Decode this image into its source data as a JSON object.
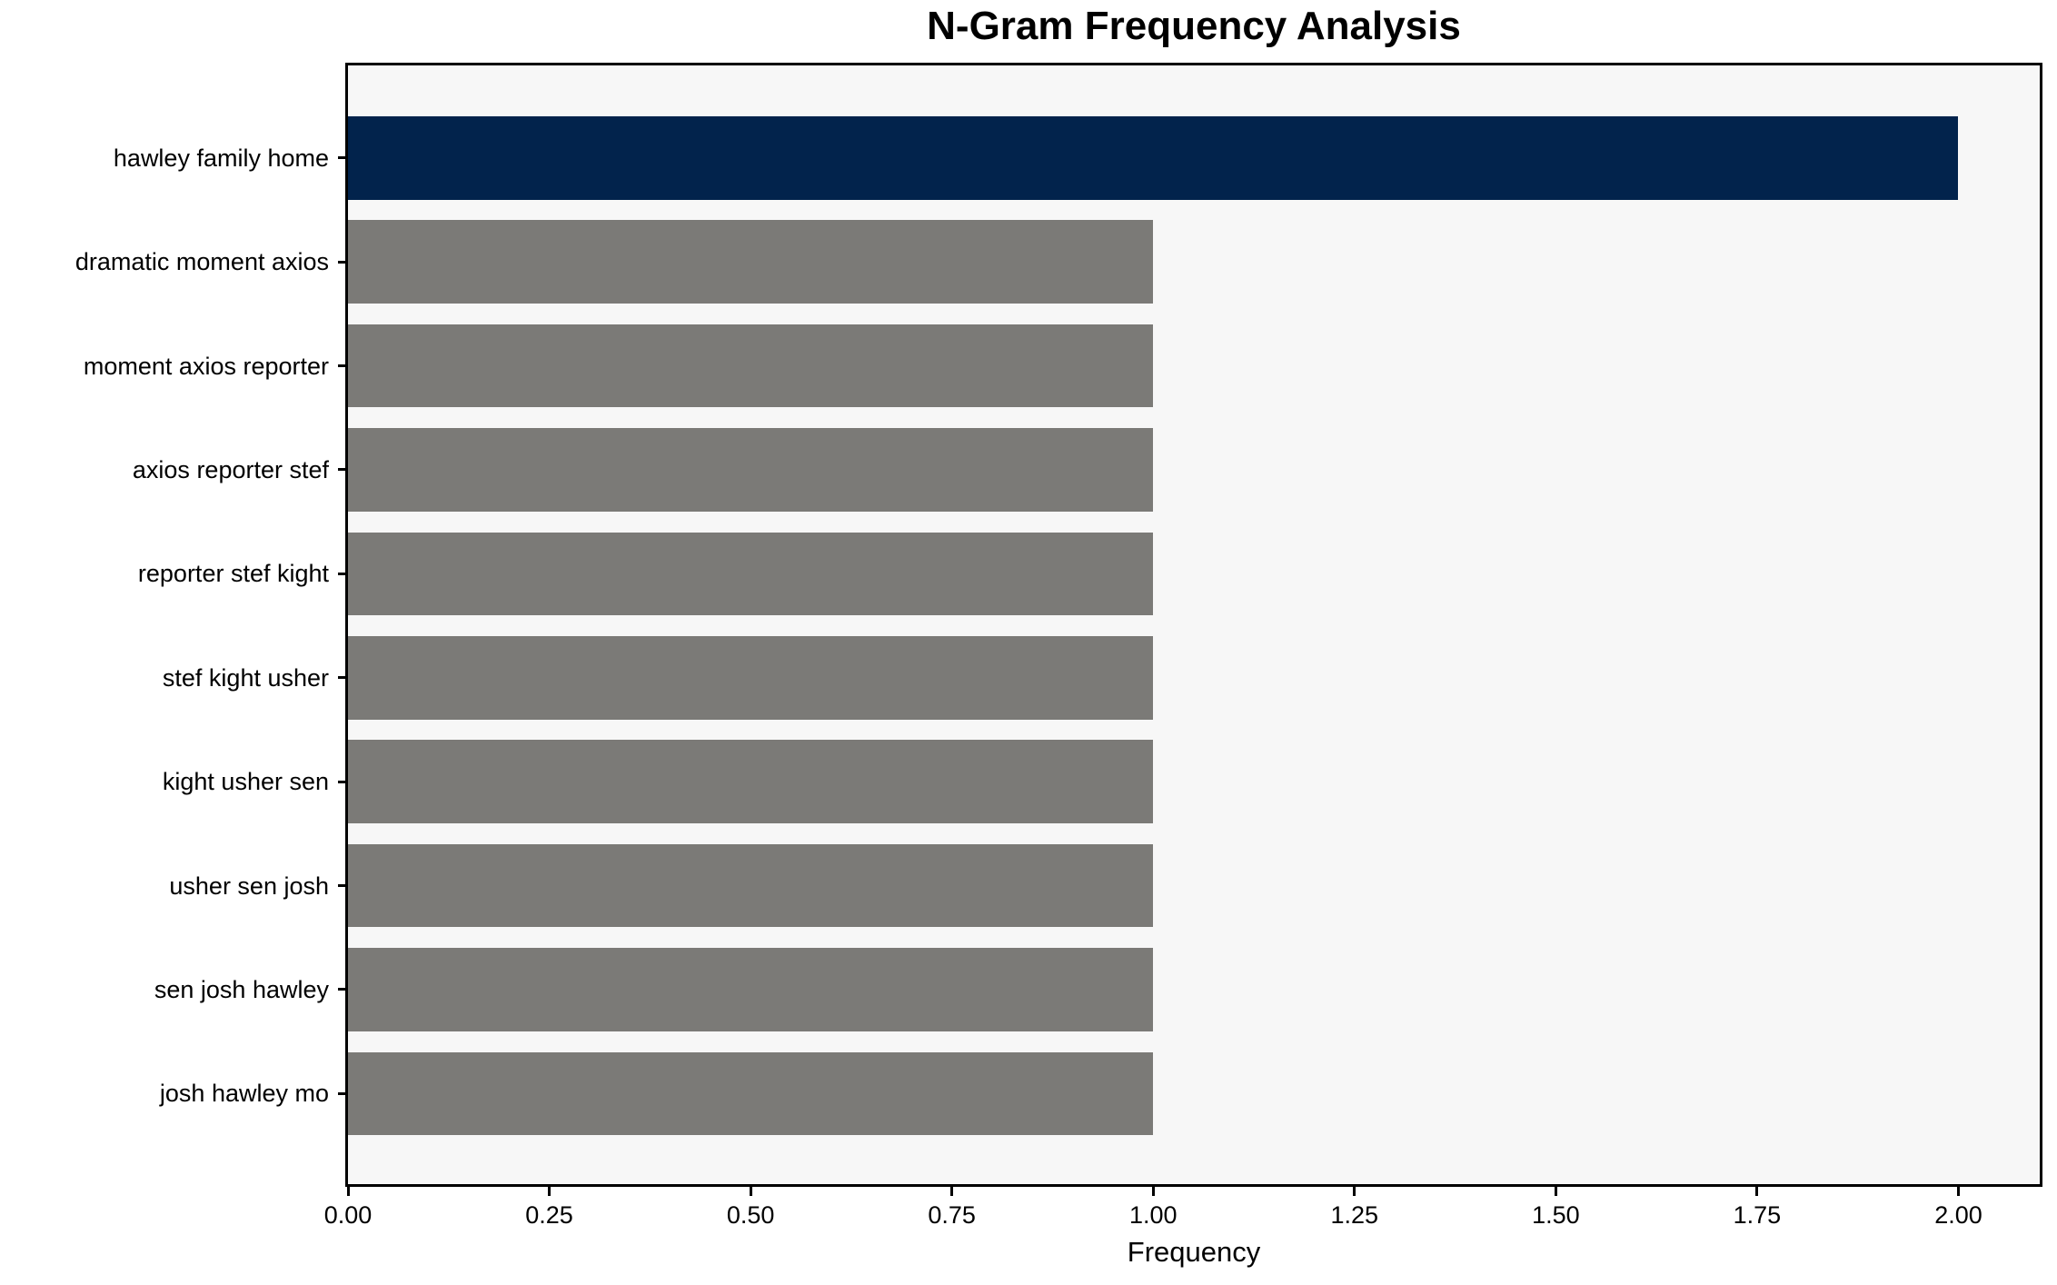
{
  "chart_data": {
    "type": "bar",
    "orientation": "horizontal",
    "title": "N-Gram Frequency Analysis",
    "xlabel": "Frequency",
    "ylabel": "",
    "categories": [
      "hawley family home",
      "dramatic moment axios",
      "moment axios reporter",
      "axios reporter stef",
      "reporter stef kight",
      "stef kight usher",
      "kight usher sen",
      "usher sen josh",
      "sen josh hawley",
      "josh hawley mo"
    ],
    "values": [
      2,
      1,
      1,
      1,
      1,
      1,
      1,
      1,
      1,
      1
    ],
    "xlim": [
      0,
      2.101
    ],
    "xtick_labels": [
      "0.00",
      "0.25",
      "0.50",
      "0.75",
      "1.00",
      "1.25",
      "1.50",
      "1.75",
      "2.00"
    ],
    "xtick_values": [
      0,
      0.25,
      0.5,
      0.75,
      1.0,
      1.25,
      1.5,
      1.75,
      2.0
    ],
    "highlight_index": 0,
    "bar_height_frac": 0.8,
    "grid": false,
    "legend": "none",
    "colors": {
      "highlight_bar": "#02234c",
      "default_bar": "#7b7a77",
      "plot_background": "#f7f7f7",
      "figure_background": "#ffffff",
      "axis": "#000000",
      "text": "#000000"
    }
  }
}
